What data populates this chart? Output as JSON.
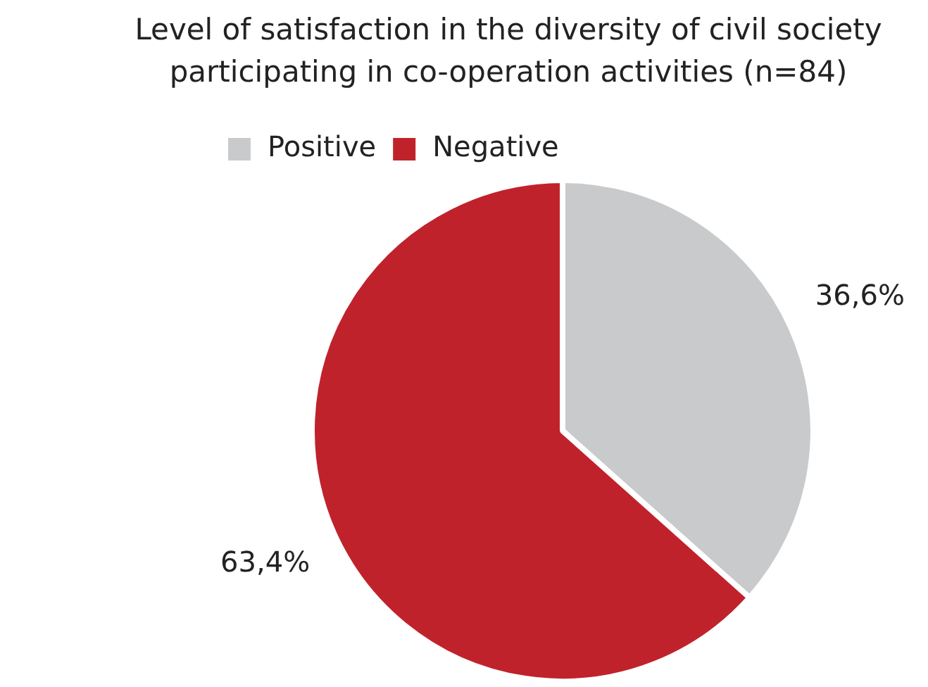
{
  "chart_data": {
    "type": "pie",
    "title": "Level of satisfaction in the diversity of civil society participating in co-operation activities (n=84)",
    "categories": [
      "Positive",
      "Negative"
    ],
    "values": [
      36.6,
      63.4
    ],
    "colors": [
      "#c8cacc",
      "#c0222b"
    ],
    "value_labels": [
      "36,6%",
      "63,4%"
    ],
    "legend": "top left"
  }
}
